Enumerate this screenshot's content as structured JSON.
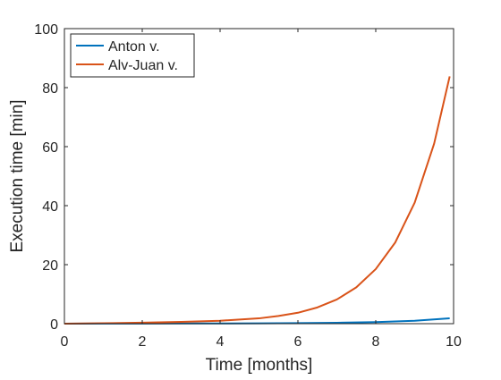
{
  "chart_data": {
    "type": "line",
    "title": "",
    "xlabel": "Time [months]",
    "ylabel": "Execution time [min]",
    "xlim": [
      0,
      10
    ],
    "ylim": [
      0,
      100
    ],
    "x_ticks": [
      0,
      2,
      4,
      6,
      8,
      10
    ],
    "y_ticks": [
      0,
      20,
      40,
      60,
      80,
      100
    ],
    "grid": false,
    "legend_position": "top-left",
    "series": [
      {
        "name": "Anton v.",
        "color": "#0072BD",
        "x": [
          0,
          1,
          2,
          3,
          4,
          5,
          6,
          7,
          8,
          9,
          9.9
        ],
        "y": [
          0,
          0.02,
          0.04,
          0.06,
          0.08,
          0.12,
          0.18,
          0.3,
          0.55,
          1.0,
          1.8
        ]
      },
      {
        "name": "Alv-Juan v.",
        "color": "#D95319",
        "x": [
          0,
          1,
          2,
          3,
          4,
          5,
          5.5,
          6,
          6.5,
          7,
          7.5,
          8,
          8.5,
          9,
          9.5,
          9.9
        ],
        "y": [
          0,
          0.15,
          0.35,
          0.6,
          1.0,
          1.8,
          2.6,
          3.7,
          5.5,
          8.2,
          12.3,
          18.5,
          27.5,
          41,
          61,
          83.8
        ]
      }
    ]
  }
}
